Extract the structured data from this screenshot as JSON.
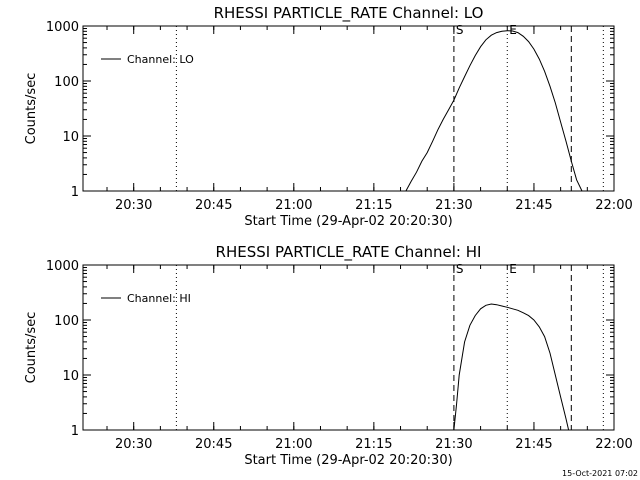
{
  "timestamp": "15-Oct-2021 07:02",
  "chart_data": [
    {
      "type": "line",
      "title": "RHESSI PARTICLE_RATE Channel: LO",
      "xlabel": "Start Time (29-Apr-02 20:20:30)",
      "ylabel": "Counts/sec",
      "yscale": "log",
      "xlim": [
        "20:20:30",
        "22:00:00"
      ],
      "ylim": [
        1,
        1000
      ],
      "xticks": [
        "20:30",
        "20:45",
        "21:00",
        "21:15",
        "21:30",
        "21:45",
        "22:00"
      ],
      "yticks": [
        "1",
        "10",
        "100",
        "1000"
      ],
      "legend": {
        "placement": "top-left",
        "entries": [
          "Channel: LO"
        ]
      },
      "vlines": [
        {
          "time": "20:38",
          "style": "dotted",
          "label": ""
        },
        {
          "time": "21:30",
          "style": "dashed",
          "label": "S"
        },
        {
          "time": "21:40",
          "style": "dotted",
          "label": "E"
        },
        {
          "time": "21:52",
          "style": "dashed",
          "label": ""
        },
        {
          "time": "21:58",
          "style": "dotted",
          "label": ""
        }
      ],
      "series": [
        {
          "name": "Channel: LO",
          "x": [
            "21:21:00",
            "21:22:00",
            "21:23:00",
            "21:24:00",
            "21:25:00",
            "21:26:00",
            "21:27:00",
            "21:28:00",
            "21:29:00",
            "21:30:00",
            "21:31:00",
            "21:32:00",
            "21:33:00",
            "21:34:00",
            "21:35:00",
            "21:36:00",
            "21:37:00",
            "21:38:00",
            "21:39:00",
            "21:40:00",
            "21:41:00",
            "21:42:00",
            "21:43:00",
            "21:44:00",
            "21:45:00",
            "21:46:00",
            "21:47:00",
            "21:48:00",
            "21:49:00",
            "21:50:00",
            "21:51:00",
            "21:52:00",
            "21:53:00",
            "21:54:00"
          ],
          "values": [
            1.0,
            1.5,
            2.2,
            3.5,
            5,
            8,
            13,
            20,
            30,
            45,
            75,
            120,
            190,
            290,
            420,
            560,
            680,
            760,
            800,
            820,
            810,
            760,
            650,
            520,
            380,
            250,
            150,
            80,
            40,
            18,
            8,
            3.5,
            1.6,
            1.0
          ]
        }
      ]
    },
    {
      "type": "line",
      "title": "RHESSI PARTICLE_RATE Channel: HI",
      "xlabel": "Start Time (29-Apr-02 20:20:30)",
      "ylabel": "Counts/sec",
      "yscale": "log",
      "xlim": [
        "20:20:30",
        "22:00:00"
      ],
      "ylim": [
        1,
        1000
      ],
      "xticks": [
        "20:30",
        "20:45",
        "21:00",
        "21:15",
        "21:30",
        "21:45",
        "22:00"
      ],
      "yticks": [
        "1",
        "10",
        "100",
        "1000"
      ],
      "legend": {
        "placement": "top-left",
        "entries": [
          "Channel: HI"
        ]
      },
      "vlines": [
        {
          "time": "20:38",
          "style": "dotted",
          "label": ""
        },
        {
          "time": "21:30",
          "style": "dashed",
          "label": "S"
        },
        {
          "time": "21:40",
          "style": "dotted",
          "label": "E"
        },
        {
          "time": "21:52",
          "style": "dashed",
          "label": ""
        },
        {
          "time": "21:58",
          "style": "dotted",
          "label": ""
        }
      ],
      "series": [
        {
          "name": "Channel: HI",
          "x": [
            "21:30:00",
            "21:30:30",
            "21:31:00",
            "21:32:00",
            "21:33:00",
            "21:34:00",
            "21:35:00",
            "21:36:00",
            "21:37:00",
            "21:38:00",
            "21:39:00",
            "21:40:00",
            "21:41:00",
            "21:42:00",
            "21:43:00",
            "21:44:00",
            "21:45:00",
            "21:46:00",
            "21:47:00",
            "21:48:00",
            "21:49:00",
            "21:50:00",
            "21:51:00",
            "21:51:30"
          ],
          "values": [
            1.0,
            3,
            10,
            40,
            80,
            120,
            160,
            185,
            195,
            190,
            180,
            170,
            160,
            150,
            135,
            120,
            100,
            75,
            50,
            25,
            10,
            4,
            1.6,
            1.0
          ]
        }
      ]
    }
  ]
}
